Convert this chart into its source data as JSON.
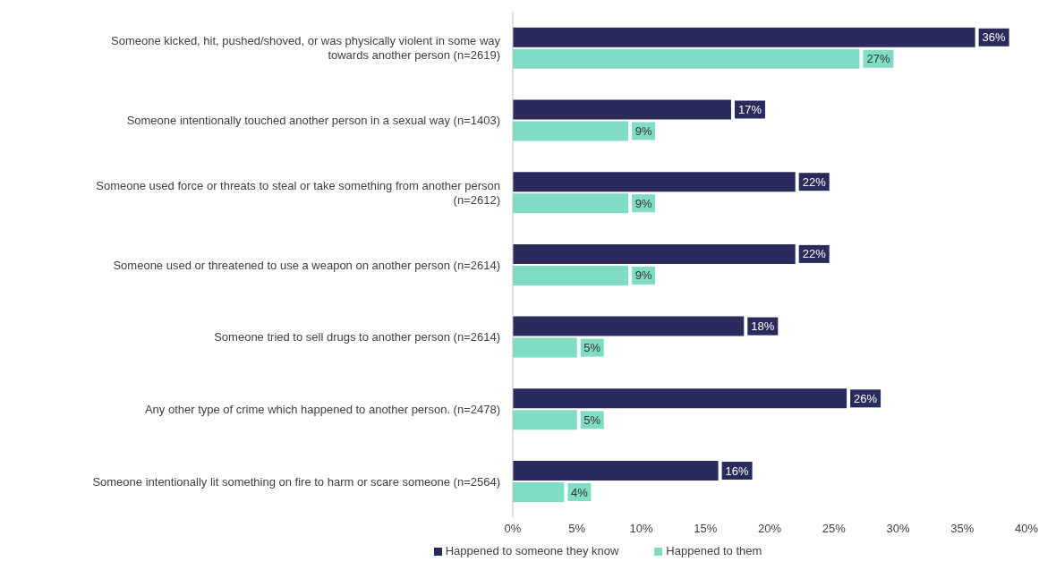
{
  "chart_data": {
    "type": "bar",
    "orientation": "horizontal",
    "categories": [
      "Someone kicked, hit, pushed/shoved, or was physically violent in some way towards another person (n=2619)",
      "Someone intentionally touched another person in a sexual way (n=1403)",
      "Someone used force or threats to steal or take something from another person (n=2612)",
      "Someone used or threatened to use a weapon on another person (n=2614)",
      "Someone tried to sell drugs to another person (n=2614)",
      "Any other type of crime which happened to another person. (n=2478)",
      "Someone intentionally lit something on fire to harm or scare someone (n=2564)"
    ],
    "series": [
      {
        "name": "Happened to someone they know",
        "color": "#2b2a5c",
        "values": [
          36,
          17,
          22,
          22,
          18,
          26,
          16
        ],
        "value_labels": [
          "36%",
          "17%",
          "22%",
          "22%",
          "18%",
          "26%",
          "16%"
        ]
      },
      {
        "name": "Happened to them",
        "color": "#80dcc5",
        "values": [
          27,
          9,
          9,
          9,
          5,
          5,
          4
        ],
        "value_labels": [
          "27%",
          "9%",
          "9%",
          "9%",
          "5%",
          "5%",
          "4%"
        ]
      }
    ],
    "xlim": [
      0,
      40
    ],
    "xticks": [
      {
        "value": 0,
        "label": "0%"
      },
      {
        "value": 5,
        "label": "5%"
      },
      {
        "value": 10,
        "label": "10%"
      },
      {
        "value": 15,
        "label": "15%"
      },
      {
        "value": 20,
        "label": "20%"
      },
      {
        "value": 25,
        "label": "25%"
      },
      {
        "value": 30,
        "label": "30%"
      },
      {
        "value": 35,
        "label": "35%"
      },
      {
        "value": 40,
        "label": "40%"
      }
    ],
    "legend": "bottom",
    "grid": false
  }
}
